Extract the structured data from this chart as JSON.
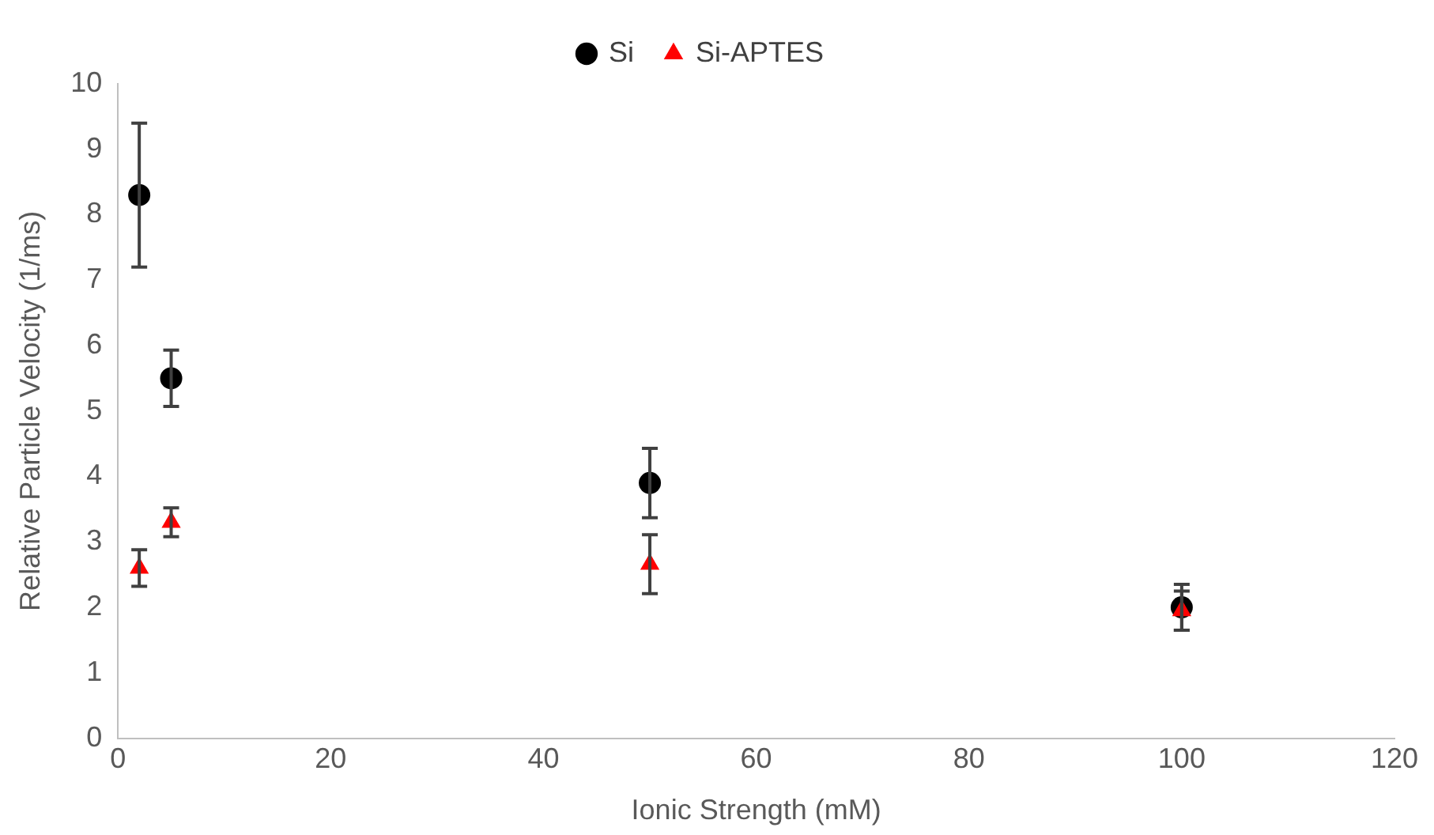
{
  "chart_data": {
    "type": "scatter",
    "xlabel": "Ionic Strength (mM)",
    "ylabel": "Relative Particle Velocity (1/ms)",
    "xlim": [
      0,
      120
    ],
    "xticks": [
      0,
      20,
      40,
      60,
      80,
      100,
      120
    ],
    "ylim": [
      0,
      10
    ],
    "yticks": [
      0,
      1,
      2,
      3,
      4,
      5,
      6,
      7,
      8,
      9,
      10
    ],
    "grid": false,
    "legend": "top",
    "series": [
      {
        "name": "Si",
        "color": "#000000",
        "marker": "circle",
        "x": [
          2,
          5,
          50,
          100
        ],
        "values": [
          8.3,
          5.5,
          3.9,
          2.0
        ],
        "errors": [
          1.1,
          0.43,
          0.53,
          0.35
        ]
      },
      {
        "name": "Si-APTES",
        "color": "#ff0000",
        "marker": "triangle",
        "x": [
          2,
          5,
          50,
          100
        ],
        "values": [
          2.6,
          3.3,
          2.66,
          1.95
        ],
        "errors": [
          0.28,
          0.22,
          0.45,
          0.3
        ]
      }
    ]
  }
}
